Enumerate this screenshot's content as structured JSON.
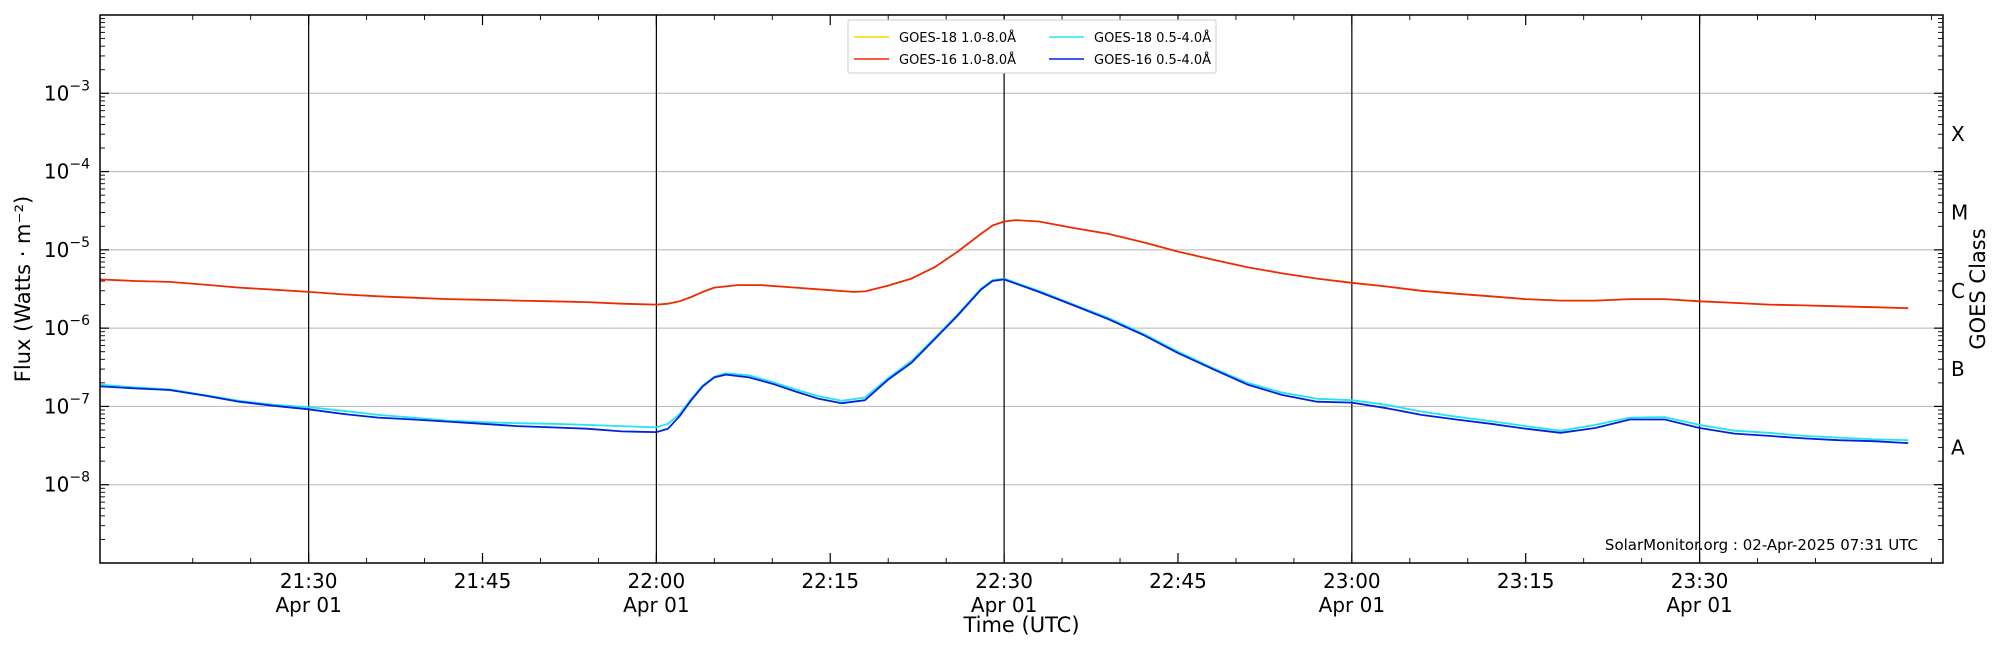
{
  "chart_data": {
    "type": "line",
    "xlabel": "Time (UTC)",
    "ylabel": "Flux (Watts · m⁻²)",
    "y2label": "GOES Class",
    "yscale": "log",
    "ylim": [
      1e-09,
      0.01
    ],
    "xlim": [
      "21:12",
      "23:51"
    ],
    "grid": "horizontal at y ticks",
    "legend_position": "top-center",
    "credit": "SolarMonitor.org : 02-Apr-2025 07:31 UTC",
    "x_ticks": [
      {
        "time": "21:30",
        "label": "21:30",
        "sublabel": "Apr 01",
        "vline": true
      },
      {
        "time": "21:45",
        "label": "21:45",
        "sublabel": "",
        "vline": false
      },
      {
        "time": "22:00",
        "label": "22:00",
        "sublabel": "Apr 01",
        "vline": true
      },
      {
        "time": "22:15",
        "label": "22:15",
        "sublabel": "",
        "vline": false
      },
      {
        "time": "22:30",
        "label": "22:30",
        "sublabel": "Apr 01",
        "vline": true
      },
      {
        "time": "22:45",
        "label": "22:45",
        "sublabel": "",
        "vline": false
      },
      {
        "time": "23:00",
        "label": "23:00",
        "sublabel": "Apr 01",
        "vline": true
      },
      {
        "time": "23:15",
        "label": "23:15",
        "sublabel": "",
        "vline": false
      },
      {
        "time": "23:30",
        "label": "23:30",
        "sublabel": "Apr 01",
        "vline": true
      }
    ],
    "y_ticks": [
      {
        "value": 1e-08,
        "base": "10",
        "exp": "−8"
      },
      {
        "value": 1e-07,
        "base": "10",
        "exp": "−7"
      },
      {
        "value": 1e-06,
        "base": "10",
        "exp": "−6"
      },
      {
        "value": 1e-05,
        "base": "10",
        "exp": "−5"
      },
      {
        "value": 0.0001,
        "base": "10",
        "exp": "−4"
      },
      {
        "value": 0.001,
        "base": "10",
        "exp": "−3"
      }
    ],
    "class_labels": [
      {
        "label": "A",
        "value": 3e-08
      },
      {
        "label": "B",
        "value": 3e-07
      },
      {
        "label": "C",
        "value": 3e-06
      },
      {
        "label": "M",
        "value": 3e-05
      },
      {
        "label": "X",
        "value": 0.0003
      }
    ],
    "series": [
      {
        "name": "GOES-18 1.0-8.0Å",
        "color": "#FFD700",
        "points": []
      },
      {
        "name": "GOES-18 0.5-4.0Å",
        "color": "#22E5F0",
        "points": [
          [
            "21:12",
            1.9e-07
          ],
          [
            "21:15",
            1.75e-07
          ],
          [
            "21:18",
            1.65e-07
          ],
          [
            "21:21",
            1.4e-07
          ],
          [
            "21:24",
            1.18e-07
          ],
          [
            "21:27",
            1.05e-07
          ],
          [
            "21:30",
            9.8e-08
          ],
          [
            "21:33",
            8.8e-08
          ],
          [
            "21:36",
            7.8e-08
          ],
          [
            "21:39",
            7.2e-08
          ],
          [
            "21:42",
            6.6e-08
          ],
          [
            "21:45",
            6.3e-08
          ],
          [
            "21:48",
            6.1e-08
          ],
          [
            "21:51",
            6e-08
          ],
          [
            "21:54",
            5.8e-08
          ],
          [
            "21:57",
            5.6e-08
          ],
          [
            "22:00",
            5.4e-08
          ],
          [
            "22:01",
            6e-08
          ],
          [
            "22:02",
            8e-08
          ],
          [
            "22:03",
            1.25e-07
          ],
          [
            "22:04",
            1.85e-07
          ],
          [
            "22:05",
            2.4e-07
          ],
          [
            "22:06",
            2.65e-07
          ],
          [
            "22:08",
            2.5e-07
          ],
          [
            "22:10",
            2.05e-07
          ],
          [
            "22:12",
            1.65e-07
          ],
          [
            "22:14",
            1.35e-07
          ],
          [
            "22:16",
            1.18e-07
          ],
          [
            "22:18",
            1.3e-07
          ],
          [
            "22:20",
            2.3e-07
          ],
          [
            "22:22",
            3.8e-07
          ],
          [
            "22:24",
            7.5e-07
          ],
          [
            "22:26",
            1.5e-06
          ],
          [
            "22:28",
            3.2e-06
          ],
          [
            "22:29",
            4.1e-06
          ],
          [
            "22:30",
            4.3e-06
          ],
          [
            "22:33",
            3e-06
          ],
          [
            "22:36",
            2e-06
          ],
          [
            "22:39",
            1.35e-06
          ],
          [
            "22:42",
            8.5e-07
          ],
          [
            "22:45",
            5e-07
          ],
          [
            "22:48",
            3.1e-07
          ],
          [
            "22:51",
            2e-07
          ],
          [
            "22:54",
            1.5e-07
          ],
          [
            "22:57",
            1.25e-07
          ],
          [
            "23:00",
            1.2e-07
          ],
          [
            "23:03",
            1.05e-07
          ],
          [
            "23:06",
            8.6e-08
          ],
          [
            "23:09",
            7.4e-08
          ],
          [
            "23:12",
            6.5e-08
          ],
          [
            "23:15",
            5.6e-08
          ],
          [
            "23:18",
            4.9e-08
          ],
          [
            "23:21",
            5.8e-08
          ],
          [
            "23:24",
            7.2e-08
          ],
          [
            "23:27",
            7.3e-08
          ],
          [
            "23:30",
            5.8e-08
          ],
          [
            "23:33",
            4.9e-08
          ],
          [
            "23:36",
            4.6e-08
          ],
          [
            "23:39",
            4.2e-08
          ],
          [
            "23:42",
            4e-08
          ],
          [
            "23:45",
            3.8e-08
          ],
          [
            "23:48",
            3.7e-08
          ]
        ]
      },
      {
        "name": "GOES-16 1.0-8.0Å",
        "color": "#EE2A00",
        "points": [
          [
            "21:12",
            4.2e-06
          ],
          [
            "21:15",
            4e-06
          ],
          [
            "21:18",
            3.9e-06
          ],
          [
            "21:21",
            3.6e-06
          ],
          [
            "21:24",
            3.3e-06
          ],
          [
            "21:27",
            3.1e-06
          ],
          [
            "21:30",
            2.9e-06
          ],
          [
            "21:33",
            2.7e-06
          ],
          [
            "21:36",
            2.55e-06
          ],
          [
            "21:39",
            2.45e-06
          ],
          [
            "21:42",
            2.35e-06
          ],
          [
            "21:45",
            2.3e-06
          ],
          [
            "21:48",
            2.25e-06
          ],
          [
            "21:51",
            2.2e-06
          ],
          [
            "21:54",
            2.15e-06
          ],
          [
            "21:57",
            2.05e-06
          ],
          [
            "22:00",
            2e-06
          ],
          [
            "22:01",
            2.05e-06
          ],
          [
            "22:02",
            2.2e-06
          ],
          [
            "22:03",
            2.5e-06
          ],
          [
            "22:04",
            2.9e-06
          ],
          [
            "22:05",
            3.3e-06
          ],
          [
            "22:07",
            3.55e-06
          ],
          [
            "22:09",
            3.55e-06
          ],
          [
            "22:12",
            3.3e-06
          ],
          [
            "22:15",
            3.05e-06
          ],
          [
            "22:17",
            2.9e-06
          ],
          [
            "22:18",
            2.95e-06
          ],
          [
            "22:20",
            3.5e-06
          ],
          [
            "22:22",
            4.3e-06
          ],
          [
            "22:24",
            6e-06
          ],
          [
            "22:26",
            9.5e-06
          ],
          [
            "22:28",
            1.6e-05
          ],
          [
            "22:29",
            2.05e-05
          ],
          [
            "22:30",
            2.3e-05
          ],
          [
            "22:31",
            2.4e-05
          ],
          [
            "22:33",
            2.3e-05
          ],
          [
            "22:36",
            1.9e-05
          ],
          [
            "22:39",
            1.6e-05
          ],
          [
            "22:42",
            1.25e-05
          ],
          [
            "22:45",
            9.5e-06
          ],
          [
            "22:48",
            7.5e-06
          ],
          [
            "22:51",
            6e-06
          ],
          [
            "22:54",
            5e-06
          ],
          [
            "22:57",
            4.3e-06
          ],
          [
            "23:00",
            3.8e-06
          ],
          [
            "23:03",
            3.4e-06
          ],
          [
            "23:06",
            3e-06
          ],
          [
            "23:09",
            2.75e-06
          ],
          [
            "23:12",
            2.55e-06
          ],
          [
            "23:15",
            2.35e-06
          ],
          [
            "23:18",
            2.25e-06
          ],
          [
            "23:21",
            2.25e-06
          ],
          [
            "23:24",
            2.35e-06
          ],
          [
            "23:27",
            2.35e-06
          ],
          [
            "23:30",
            2.2e-06
          ],
          [
            "23:33",
            2.1e-06
          ],
          [
            "23:36",
            2e-06
          ],
          [
            "23:39",
            1.95e-06
          ],
          [
            "23:42",
            1.9e-06
          ],
          [
            "23:45",
            1.85e-06
          ],
          [
            "23:48",
            1.8e-06
          ]
        ]
      },
      {
        "name": "GOES-16 0.5-4.0Å",
        "color": "#0022DD",
        "points": [
          [
            "21:12",
            1.8e-07
          ],
          [
            "21:15",
            1.7e-07
          ],
          [
            "21:18",
            1.62e-07
          ],
          [
            "21:21",
            1.38e-07
          ],
          [
            "21:24",
            1.15e-07
          ],
          [
            "21:27",
            1.02e-07
          ],
          [
            "21:30",
            9.2e-08
          ],
          [
            "21:33",
            8e-08
          ],
          [
            "21:36",
            7.2e-08
          ],
          [
            "21:39",
            6.8e-08
          ],
          [
            "21:42",
            6.4e-08
          ],
          [
            "21:45",
            6e-08
          ],
          [
            "21:48",
            5.6e-08
          ],
          [
            "21:51",
            5.4e-08
          ],
          [
            "21:54",
            5.2e-08
          ],
          [
            "21:57",
            4.8e-08
          ],
          [
            "22:00",
            4.7e-08
          ],
          [
            "22:01",
            5.2e-08
          ],
          [
            "22:02",
            7.5e-08
          ],
          [
            "22:03",
            1.2e-07
          ],
          [
            "22:04",
            1.8e-07
          ],
          [
            "22:05",
            2.35e-07
          ],
          [
            "22:06",
            2.55e-07
          ],
          [
            "22:08",
            2.35e-07
          ],
          [
            "22:10",
            1.95e-07
          ],
          [
            "22:12",
            1.55e-07
          ],
          [
            "22:14",
            1.25e-07
          ],
          [
            "22:16",
            1.1e-07
          ],
          [
            "22:18",
            1.2e-07
          ],
          [
            "22:20",
            2.2e-07
          ],
          [
            "22:22",
            3.6e-07
          ],
          [
            "22:24",
            7.2e-07
          ],
          [
            "22:26",
            1.45e-06
          ],
          [
            "22:28",
            3.1e-06
          ],
          [
            "22:29",
            4e-06
          ],
          [
            "22:30",
            4.2e-06
          ],
          [
            "22:33",
            2.9e-06
          ],
          [
            "22:36",
            1.95e-06
          ],
          [
            "22:39",
            1.3e-06
          ],
          [
            "22:42",
            8.2e-07
          ],
          [
            "22:45",
            4.8e-07
          ],
          [
            "22:48",
            3e-07
          ],
          [
            "22:51",
            1.9e-07
          ],
          [
            "22:54",
            1.4e-07
          ],
          [
            "22:57",
            1.15e-07
          ],
          [
            "23:00",
            1.12e-07
          ],
          [
            "23:03",
            9.5e-08
          ],
          [
            "23:06",
            7.8e-08
          ],
          [
            "23:09",
            6.8e-08
          ],
          [
            "23:12",
            6e-08
          ],
          [
            "23:15",
            5.2e-08
          ],
          [
            "23:18",
            4.6e-08
          ],
          [
            "23:21",
            5.3e-08
          ],
          [
            "23:24",
            6.8e-08
          ],
          [
            "23:27",
            6.8e-08
          ],
          [
            "23:30",
            5.3e-08
          ],
          [
            "23:33",
            4.5e-08
          ],
          [
            "23:36",
            4.2e-08
          ],
          [
            "23:39",
            3.9e-08
          ],
          [
            "23:42",
            3.7e-08
          ],
          [
            "23:45",
            3.6e-08
          ],
          [
            "23:48",
            3.4e-08
          ]
        ]
      }
    ]
  }
}
